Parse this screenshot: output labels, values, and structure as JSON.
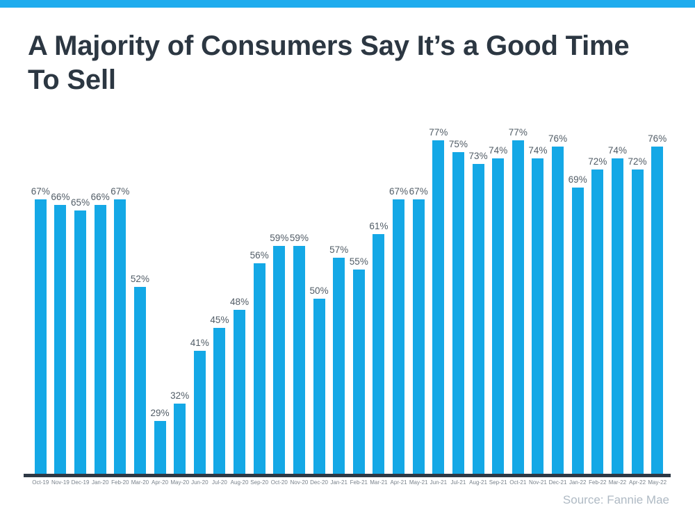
{
  "page": {
    "background_color": "#FFFFFF",
    "accent_stripe_color": "#1FACEE"
  },
  "header": {
    "title": "A Majority of Consumers Say It’s a Good Time To Sell"
  },
  "chart_data": {
    "type": "bar",
    "title": "A Majority of Consumers Say It’s a Good Time To Sell",
    "categories": [
      "Oct-19",
      "Nov-19",
      "Dec-19",
      "Jan-20",
      "Feb-20",
      "Mar-20",
      "Apr-20",
      "May-20",
      "Jun-20",
      "Jul-20",
      "Aug-20",
      "Sep-20",
      "Oct-20",
      "Nov-20",
      "Dec-20",
      "Jan-21",
      "Feb-21",
      "Mar-21",
      "Apr-21",
      "May-21",
      "Jun-21",
      "Jul-21",
      "Aug-21",
      "Sep-21",
      "Oct-21",
      "Nov-21",
      "Dec-21",
      "Jan-22",
      "Feb-22",
      "Mar-22",
      "Apr-22",
      "May-22"
    ],
    "values": [
      67,
      66,
      65,
      66,
      67,
      52,
      29,
      32,
      41,
      45,
      48,
      56,
      59,
      59,
      50,
      57,
      55,
      61,
      67,
      67,
      77,
      75,
      73,
      74,
      77,
      74,
      76,
      69,
      72,
      74,
      72,
      76
    ],
    "unit": "%",
    "xlabel": "",
    "ylabel": "",
    "ylim": [
      20,
      78
    ],
    "grid": false,
    "legend": false,
    "data_labels_visible": true,
    "bar_color": "#14A8E6",
    "value_label_color": "#515C66",
    "tick_label_color": "#79828B",
    "axis_line_color": "#2E3945",
    "source": "Source: Fannie Mae",
    "source_color": "#AFBAC4"
  }
}
